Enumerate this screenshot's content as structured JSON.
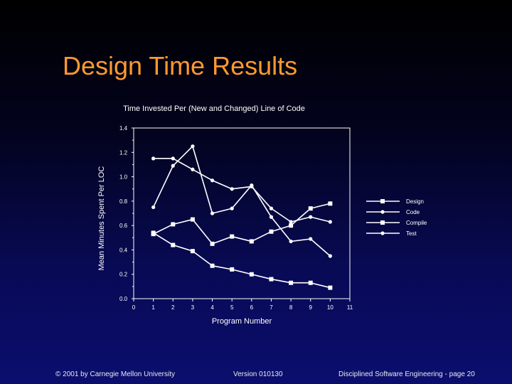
{
  "slide": {
    "title": "Design Time Results"
  },
  "footer": {
    "copyright": "© 2001 by Carnegie Mellon University",
    "version": "Version 010130",
    "course_page": "Disciplined Software Engineering - page 20"
  },
  "colors": {
    "title": "#ff9a2e",
    "chart_ink": "#ffffff",
    "background_top": "#000000",
    "background_bottom": "#0b0e6e"
  },
  "chart_data": {
    "type": "line",
    "title": "Time Invested Per (New and Changed) Line of Code",
    "xlabel": "Program Number",
    "ylabel": "Mean Minutes Spent Per LOC",
    "xlim": [
      0,
      11
    ],
    "ylim": [
      0,
      1.4
    ],
    "x_ticks": [
      "0",
      "1",
      "2",
      "3",
      "4",
      "5",
      "6",
      "7",
      "8",
      "9",
      "10",
      "11"
    ],
    "y_ticks": [
      "0.0",
      "0.2",
      "0.4",
      "0.6",
      "0.8",
      "1.0",
      "1.2",
      "1.4"
    ],
    "grid": false,
    "legend_position": "right",
    "series": [
      {
        "name": "Design",
        "marker": "square",
        "x": [
          1,
          2,
          3,
          4,
          5,
          6,
          7,
          8,
          9,
          10
        ],
        "values": [
          0.53,
          0.61,
          0.65,
          0.45,
          0.51,
          0.47,
          0.55,
          0.6,
          0.74,
          0.78
        ]
      },
      {
        "name": "Code",
        "marker": "circle",
        "x": [
          1,
          2,
          3,
          4,
          5,
          6,
          7,
          8,
          9,
          10
        ],
        "values": [
          1.15,
          1.15,
          1.06,
          0.97,
          0.9,
          0.92,
          0.74,
          0.63,
          0.67,
          0.63
        ]
      },
      {
        "name": "Compile",
        "marker": "square",
        "x": [
          1,
          2,
          3,
          4,
          5,
          6,
          7,
          8,
          9,
          10
        ],
        "values": [
          0.54,
          0.44,
          0.39,
          0.27,
          0.24,
          0.2,
          0.16,
          0.13,
          0.13,
          0.09
        ]
      },
      {
        "name": "Test",
        "marker": "circle",
        "x": [
          1,
          2,
          3,
          4,
          5,
          6,
          7,
          8,
          9,
          10
        ],
        "values": [
          0.75,
          1.09,
          1.25,
          0.7,
          0.74,
          0.93,
          0.67,
          0.47,
          0.49,
          0.35
        ]
      }
    ]
  }
}
